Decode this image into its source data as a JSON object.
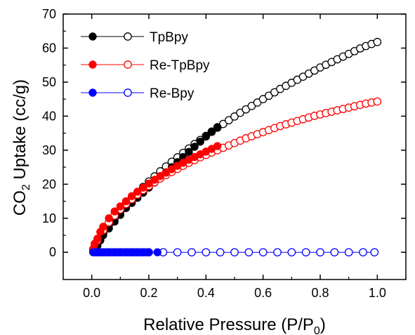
{
  "chart_data": {
    "type": "scatter",
    "xlabel": "Relative Pressure (P/P",
    "xlabel_sub": "0",
    "xlabel_end": ")",
    "ylabel": "CO",
    "ylabel_sub": "2",
    "ylabel_end": " Uptake (cc/g)",
    "xlim": [
      -0.1,
      1.1
    ],
    "ylim": [
      -8,
      70
    ],
    "xticks": [
      "0.0",
      "0.2",
      "0.4",
      "0.6",
      "0.8",
      "1.0"
    ],
    "yticks": [
      "0",
      "10",
      "20",
      "30",
      "40",
      "50",
      "60",
      "70"
    ],
    "grid": false,
    "legend_position": "top-left",
    "series": [
      {
        "name": "TpBpy",
        "color": "#000000",
        "filled": {
          "x": [
            0.005,
            0.01,
            0.02,
            0.03,
            0.04,
            0.06,
            0.08,
            0.1,
            0.12,
            0.14,
            0.16,
            0.18,
            0.2,
            0.22,
            0.24,
            0.26,
            0.28,
            0.3,
            0.32,
            0.34,
            0.36,
            0.38,
            0.4,
            0.42,
            0.44
          ],
          "y": [
            0.5,
            1.0,
            2.0,
            3.5,
            5.0,
            7.0,
            9.0,
            11.0,
            13.0,
            14.5,
            16.0,
            17.5,
            19.0,
            20.5,
            22.0,
            23.5,
            25.0,
            26.5,
            28.0,
            29.5,
            31.0,
            32.5,
            34.0,
            35.5,
            36.8
          ]
        },
        "open": {
          "x": [
            0.02,
            0.04,
            0.06,
            0.08,
            0.1,
            0.12,
            0.14,
            0.16,
            0.18,
            0.2,
            0.22,
            0.24,
            0.26,
            0.28,
            0.3,
            0.32,
            0.34,
            0.36,
            0.38,
            0.4,
            0.42,
            0.44,
            0.46,
            0.48,
            0.5,
            0.52,
            0.54,
            0.56,
            0.58,
            0.6,
            0.62,
            0.64,
            0.66,
            0.68,
            0.7,
            0.72,
            0.74,
            0.76,
            0.78,
            0.8,
            0.82,
            0.84,
            0.86,
            0.88,
            0.9,
            0.92,
            0.94,
            0.96,
            0.98,
            1.0
          ],
          "y": [
            3.0,
            5.5,
            8.0,
            10.0,
            12.0,
            14.0,
            15.8,
            17.5,
            19.2,
            20.8,
            22.3,
            23.8,
            25.2,
            26.6,
            27.9,
            29.2,
            30.5,
            31.8,
            33.0,
            34.2,
            35.4,
            36.6,
            37.7,
            38.8,
            39.9,
            41.0,
            42.0,
            43.0,
            44.0,
            45.0,
            46.0,
            47.0,
            48.0,
            48.9,
            49.8,
            50.7,
            51.6,
            52.5,
            53.4,
            54.3,
            55.1,
            55.9,
            56.7,
            57.5,
            58.3,
            59.1,
            59.9,
            60.6,
            61.2,
            61.8
          ]
        }
      },
      {
        "name": "Re-TpBpy",
        "color": "#ff0000",
        "filled": {
          "x": [
            0.005,
            0.01,
            0.02,
            0.03,
            0.04,
            0.06,
            0.08,
            0.1,
            0.12,
            0.14,
            0.16,
            0.18,
            0.2,
            0.22,
            0.24,
            0.26,
            0.28,
            0.3,
            0.32,
            0.34,
            0.36,
            0.38,
            0.4,
            0.42,
            0.44
          ],
          "y": [
            1.0,
            2.5,
            4.0,
            6.0,
            7.5,
            10.0,
            12.0,
            13.5,
            15.0,
            16.5,
            17.8,
            19.0,
            20.2,
            21.3,
            22.4,
            23.4,
            24.4,
            25.4,
            26.3,
            27.2,
            28.0,
            28.8,
            29.6,
            30.4,
            31.2
          ]
        },
        "open": {
          "x": [
            0.02,
            0.04,
            0.06,
            0.08,
            0.1,
            0.12,
            0.14,
            0.16,
            0.18,
            0.2,
            0.22,
            0.24,
            0.26,
            0.28,
            0.3,
            0.32,
            0.34,
            0.36,
            0.38,
            0.4,
            0.42,
            0.44,
            0.46,
            0.48,
            0.5,
            0.52,
            0.54,
            0.56,
            0.58,
            0.6,
            0.62,
            0.64,
            0.66,
            0.68,
            0.7,
            0.72,
            0.74,
            0.76,
            0.78,
            0.8,
            0.82,
            0.84,
            0.86,
            0.88,
            0.9,
            0.92,
            0.94,
            0.96,
            0.98,
            1.0
          ],
          "y": [
            3.5,
            6.5,
            8.8,
            10.8,
            12.6,
            14.2,
            15.6,
            17.0,
            18.3,
            19.5,
            20.6,
            21.7,
            22.7,
            23.6,
            24.5,
            25.4,
            26.3,
            27.1,
            27.9,
            28.6,
            29.3,
            30.0,
            30.7,
            31.4,
            32.1,
            32.8,
            33.5,
            34.1,
            34.7,
            35.3,
            35.9,
            36.5,
            37.1,
            37.6,
            38.1,
            38.6,
            39.1,
            39.6,
            40.1,
            40.5,
            40.9,
            41.3,
            41.7,
            42.1,
            42.5,
            42.9,
            43.3,
            43.7,
            44.0,
            44.3
          ]
        }
      },
      {
        "name": "Re-Bpy",
        "color": "#0000ff",
        "filled": {
          "x": [
            0.005,
            0.01,
            0.02,
            0.03,
            0.04,
            0.06,
            0.08,
            0.1,
            0.12,
            0.14,
            0.16,
            0.18,
            0.2,
            0.23
          ],
          "y": [
            0,
            0,
            0,
            0,
            0,
            0,
            0,
            0,
            0,
            0,
            0,
            0,
            0,
            0
          ]
        },
        "open": {
          "x": [
            0.01,
            0.02,
            0.03,
            0.04,
            0.05,
            0.06,
            0.07,
            0.08,
            0.09,
            0.1,
            0.11,
            0.12,
            0.13,
            0.14,
            0.15,
            0.16,
            0.17,
            0.18,
            0.19,
            0.2,
            0.25,
            0.3,
            0.35,
            0.4,
            0.45,
            0.5,
            0.55,
            0.6,
            0.65,
            0.7,
            0.75,
            0.8,
            0.85,
            0.9,
            0.95,
            0.99
          ],
          "y": [
            0,
            0,
            0,
            0,
            0,
            0,
            0,
            0,
            0,
            0,
            0,
            0,
            0,
            0,
            0,
            0,
            0,
            0,
            0,
            0,
            0,
            0,
            0,
            0,
            0,
            0,
            0,
            0,
            0,
            0,
            0,
            0,
            0,
            0,
            0,
            0
          ]
        }
      }
    ]
  }
}
